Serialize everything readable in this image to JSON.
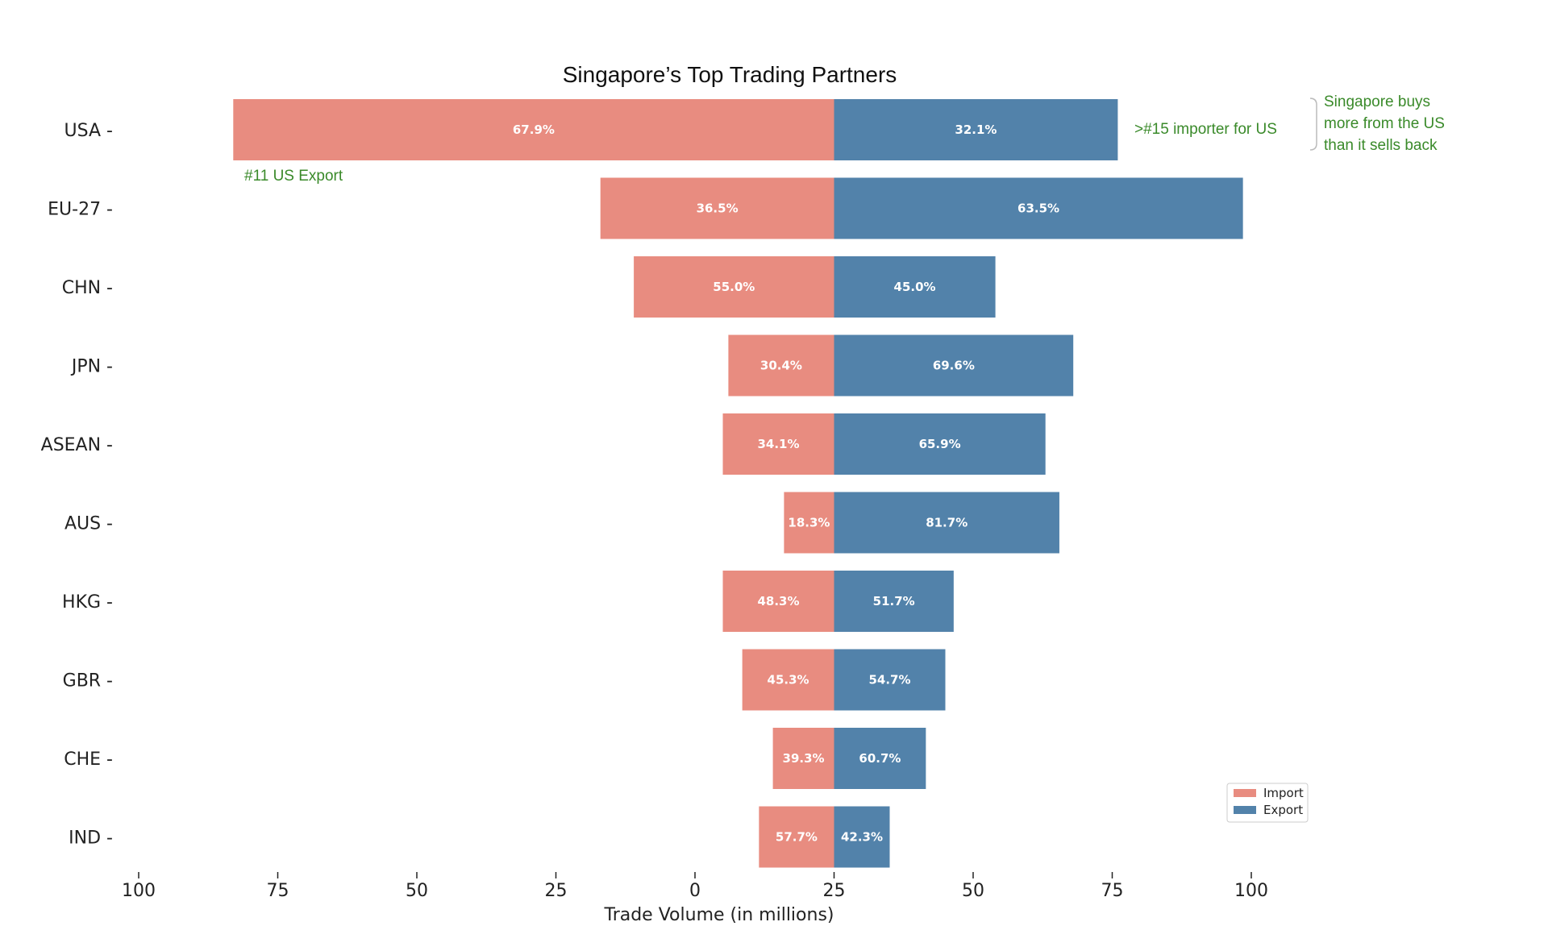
{
  "colors": {
    "import": "#E88C80",
    "export": "#5282AA",
    "annotation": "#3A8A2A",
    "text": "#222222"
  },
  "chart_data": {
    "type": "bar",
    "orientation": "horizontal",
    "stacked": "diverging",
    "title": "Singapore’s Top Trading Partners",
    "xlabel": "Trade Volume (in millions)",
    "ylabel": "",
    "x_ticks": [
      "100",
      "75",
      "50",
      "25",
      "0",
      "25",
      "50",
      "75",
      "100"
    ],
    "x_tick_values": [
      -100,
      -75,
      -50,
      -25,
      0,
      25,
      50,
      75,
      100
    ],
    "xlim": [
      -100,
      100
    ],
    "zero_at": 25,
    "categories": [
      "USA",
      "EU-27",
      "CHN",
      "JPN",
      "ASEAN",
      "AUS",
      "HKG",
      "GBR",
      "CHE",
      "IND"
    ],
    "series": [
      {
        "name": "Import",
        "values": [
          -83,
          -17,
          -11,
          6,
          5,
          16,
          5,
          8.5,
          14,
          11.5
        ],
        "share_labels": [
          "67.9%",
          "36.5%",
          "55.0%",
          "30.4%",
          "34.1%",
          "18.3%",
          "48.3%",
          "45.3%",
          "39.3%",
          "57.7%"
        ]
      },
      {
        "name": "Export",
        "values": [
          76,
          98.5,
          54,
          68,
          63,
          65.5,
          46.5,
          45,
          41.5,
          35
        ],
        "share_labels": [
          "32.1%",
          "63.5%",
          "45.0%",
          "69.6%",
          "65.9%",
          "81.7%",
          "51.7%",
          "54.7%",
          "60.7%",
          "42.3%"
        ]
      }
    ],
    "annotations": [
      {
        "text": "#11 US Export"
      },
      {
        "text": ">#15 importer for US"
      },
      {
        "lines": [
          "Singapore buys",
          "more from the US",
          "than it sells back"
        ]
      }
    ],
    "legend": {
      "position": "lower-right",
      "entries": [
        "Import",
        "Export"
      ]
    },
    "grid": false
  }
}
